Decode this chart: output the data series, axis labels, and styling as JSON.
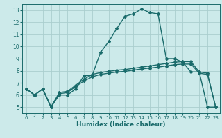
{
  "title": "",
  "xlabel": "Humidex (Indice chaleur)",
  "bg_color": "#cceaea",
  "grid_color": "#aacece",
  "line_color": "#1a6b6b",
  "xlim": [
    -0.5,
    23.5
  ],
  "ylim": [
    4.5,
    13.5
  ],
  "xticks": [
    0,
    1,
    2,
    3,
    4,
    5,
    6,
    7,
    8,
    9,
    10,
    11,
    12,
    13,
    14,
    15,
    16,
    17,
    18,
    19,
    20,
    21,
    22,
    23
  ],
  "yticks": [
    5,
    6,
    7,
    8,
    9,
    10,
    11,
    12,
    13
  ],
  "curve1_x": [
    0,
    1,
    2,
    3,
    4,
    5,
    6,
    7,
    8,
    9,
    10,
    11,
    12,
    13,
    14,
    15,
    16,
    17,
    18,
    19,
    20,
    21,
    22,
    23
  ],
  "curve1_y": [
    6.5,
    6.0,
    6.5,
    5.0,
    6.0,
    6.0,
    6.5,
    7.6,
    7.6,
    9.5,
    10.4,
    11.5,
    12.5,
    12.7,
    13.1,
    12.8,
    12.7,
    9.0,
    9.0,
    8.7,
    7.9,
    7.9,
    5.0,
    5.0
  ],
  "curve2_x": [
    0,
    1,
    2,
    3,
    4,
    5,
    6,
    7,
    8,
    9,
    10,
    11,
    12,
    13,
    14,
    15,
    16,
    17,
    18,
    19,
    20,
    21,
    22,
    23
  ],
  "curve2_y": [
    6.5,
    6.0,
    6.5,
    5.0,
    6.2,
    6.3,
    6.8,
    7.3,
    7.7,
    7.85,
    7.95,
    8.05,
    8.1,
    8.2,
    8.3,
    8.4,
    8.5,
    8.6,
    8.7,
    8.75,
    8.75,
    7.9,
    7.8,
    5.0
  ],
  "curve3_x": [
    0,
    1,
    2,
    3,
    4,
    5,
    6,
    7,
    8,
    9,
    10,
    11,
    12,
    13,
    14,
    15,
    16,
    17,
    18,
    19,
    20,
    21,
    22,
    23
  ],
  "curve3_y": [
    6.5,
    6.0,
    6.5,
    5.0,
    6.1,
    6.2,
    6.7,
    7.15,
    7.5,
    7.7,
    7.8,
    7.9,
    7.95,
    8.05,
    8.15,
    8.22,
    8.3,
    8.4,
    8.5,
    8.55,
    8.55,
    7.8,
    7.7,
    5.0
  ],
  "marker": "D",
  "marker_size": 2,
  "linewidth": 1.0
}
